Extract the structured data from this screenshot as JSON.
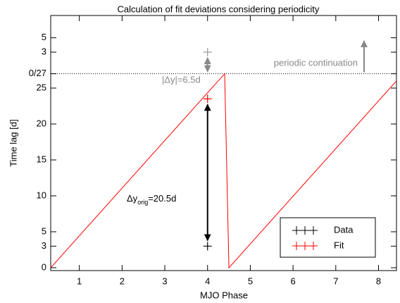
{
  "chart_data": {
    "type": "line",
    "title": "Calculation of fit deviations considering periodicity",
    "xlabel": "MJO Phase",
    "ylabel": "Time lag  [d]",
    "xlim": [
      0.33,
      8.42
    ],
    "xticks": [
      1,
      2,
      3,
      4,
      5,
      6,
      7,
      8
    ],
    "ylim": [
      -0.4,
      35.1
    ],
    "yticks": [
      0,
      3,
      5,
      10,
      15,
      20,
      25,
      {
        "value": 27,
        "label": "0/27"
      },
      {
        "value": 30,
        "label": "3"
      },
      {
        "value": 32,
        "label": "5"
      }
    ],
    "hline": 27,
    "series": [
      {
        "name": "Data",
        "color": "#000000",
        "x": [
          4
        ],
        "values": [
          3
        ]
      },
      {
        "name": "Fit",
        "color": "#ff0000",
        "x": [
          0.33,
          4.4,
          4.5,
          8.42
        ],
        "values": [
          0,
          27,
          0,
          26
        ]
      }
    ],
    "fit_point": {
      "x": 4,
      "value": 23.5,
      "color": "#ff0000"
    },
    "periodic_point": {
      "x": 4,
      "value": 30,
      "color": "#999999"
    },
    "annotations": {
      "periodic": "periodic continuation",
      "delta": "|Δy|=6.5d",
      "orig": {
        "main": "Δy",
        "sub": "orig",
        "rest": "=20.5d"
      }
    }
  }
}
